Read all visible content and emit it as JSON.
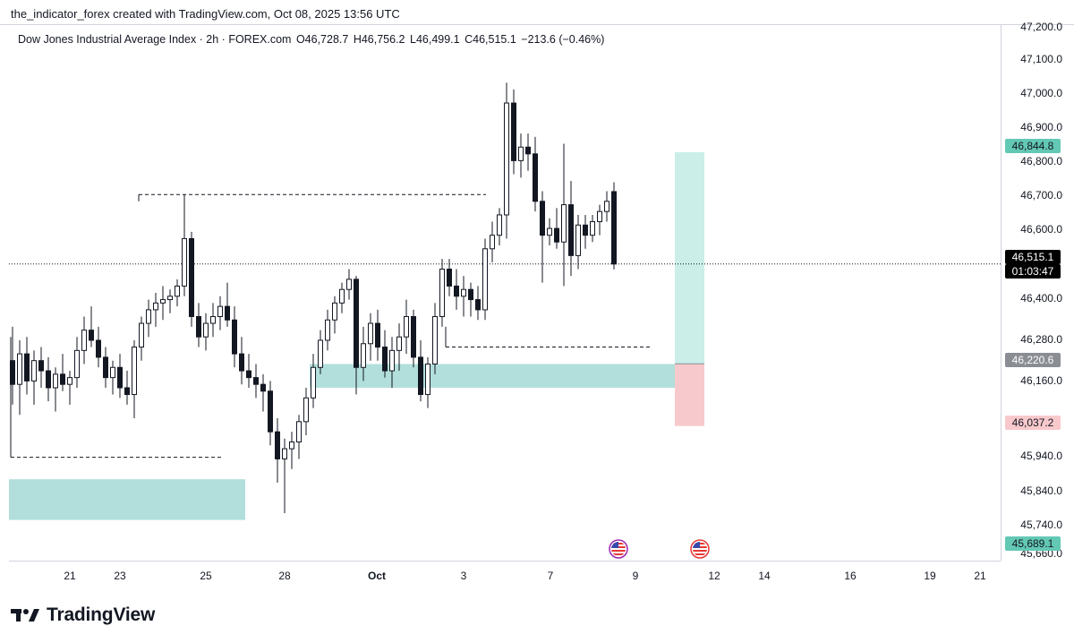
{
  "header": {
    "attribution": "the_indicator_forex created with TradingView.com, Oct 08, 2025 13:56 UTC"
  },
  "legend": {
    "symbol": "Dow Jones Industrial Average Index · 2h · FOREX.com",
    "open": "O46,728.7",
    "high": "H46,756.2",
    "low": "L46,499.1",
    "close": "C46,515.1",
    "change": "−213.6 (−0.46%)"
  },
  "price_axis": {
    "labels": [
      "47,200.0",
      "47,100.0",
      "47,000.0",
      "46,900.0",
      "46,800.0",
      "46,700.0",
      "46,600.0",
      "46,400.0",
      "46,280.0",
      "46,160.0",
      "45,940.0",
      "45,840.0",
      "45,740.0",
      "45,660.0"
    ],
    "badges": {
      "target": "46,844.8",
      "current_price": "46,515.1",
      "countdown": "01:03:47",
      "entry": "46,220.6",
      "stop": "46,037.2",
      "low": "45,689.1"
    }
  },
  "time_axis": {
    "labels": [
      "21",
      "23",
      "25",
      "28",
      "Oct",
      "3",
      "7",
      "9",
      "12",
      "14",
      "16",
      "19",
      "21"
    ]
  },
  "brand": {
    "name": "TradingView"
  },
  "colors": {
    "bull": "#26a69a",
    "bear": "#ef5350",
    "zone": "#b2dfdb",
    "target_zone": "#cbeee9",
    "stop_zone": "#f8c9cc",
    "text": "#131722",
    "grid_line": "#d1d4dc"
  },
  "icons": {
    "event_markers": [
      "us-flag-icon",
      "us-flag-icon"
    ],
    "logo": "tradingview-logo-icon"
  },
  "chart_data": {
    "type": "candlestick",
    "symbol": "Dow Jones Industrial Average Index",
    "interval": "2h",
    "ylim": [
      45640,
      47220
    ],
    "last_price": 46515.1,
    "candles_ohlc": [
      [
        46230,
        46330,
        46100,
        46160
      ],
      [
        46160,
        46290,
        46070,
        46250
      ],
      [
        46250,
        46300,
        46130,
        46170
      ],
      [
        46170,
        46260,
        46100,
        46230
      ],
      [
        46230,
        46270,
        46150,
        46200
      ],
      [
        46200,
        46240,
        46110,
        46150
      ],
      [
        46150,
        46210,
        46080,
        46190
      ],
      [
        46190,
        46250,
        46140,
        46160
      ],
      [
        46160,
        46200,
        46100,
        46180
      ],
      [
        46180,
        46300,
        46150,
        46260
      ],
      [
        46260,
        46360,
        46220,
        46320
      ],
      [
        46320,
        46390,
        46270,
        46290
      ],
      [
        46290,
        46330,
        46210,
        46240
      ],
      [
        46240,
        46270,
        46150,
        46180
      ],
      [
        46180,
        46230,
        46130,
        46210
      ],
      [
        46210,
        46250,
        46120,
        46150
      ],
      [
        46150,
        46200,
        46100,
        46130
      ],
      [
        46130,
        46290,
        46060,
        46270
      ],
      [
        46270,
        46360,
        46230,
        46340
      ],
      [
        46340,
        46410,
        46300,
        46380
      ],
      [
        46380,
        46430,
        46330,
        46400
      ],
      [
        46400,
        46450,
        46350,
        46410
      ],
      [
        46410,
        46440,
        46370,
        46420
      ],
      [
        46420,
        46470,
        46390,
        46450
      ],
      [
        46450,
        46720,
        46420,
        46590
      ],
      [
        46590,
        46610,
        46330,
        46360
      ],
      [
        46360,
        46400,
        46270,
        46300
      ],
      [
        46300,
        46370,
        46260,
        46340
      ],
      [
        46340,
        46400,
        46300,
        46360
      ],
      [
        46360,
        46420,
        46320,
        46390
      ],
      [
        46390,
        46460,
        46330,
        46350
      ],
      [
        46350,
        46390,
        46210,
        46250
      ],
      [
        46250,
        46300,
        46160,
        46200
      ],
      [
        46200,
        46250,
        46150,
        46180
      ],
      [
        46180,
        46220,
        46120,
        46160
      ],
      [
        46160,
        46190,
        46080,
        46140
      ],
      [
        46140,
        46170,
        45980,
        46020
      ],
      [
        46020,
        46060,
        45870,
        45940
      ],
      [
        45940,
        46000,
        45780,
        45970
      ],
      [
        45970,
        46020,
        45910,
        45990
      ],
      [
        45990,
        46070,
        45940,
        46050
      ],
      [
        46050,
        46150,
        46010,
        46120
      ],
      [
        46120,
        46250,
        46090,
        46210
      ],
      [
        46210,
        46320,
        46190,
        46290
      ],
      [
        46290,
        46380,
        46260,
        46350
      ],
      [
        46350,
        46420,
        46310,
        46400
      ],
      [
        46400,
        46460,
        46370,
        46440
      ],
      [
        46440,
        46500,
        46410,
        46470
      ],
      [
        46470,
        46480,
        46130,
        46210
      ],
      [
        46210,
        46330,
        46170,
        46280
      ],
      [
        46280,
        46370,
        46230,
        46340
      ],
      [
        46340,
        46380,
        46230,
        46270
      ],
      [
        46270,
        46320,
        46180,
        46200
      ],
      [
        46200,
        46300,
        46150,
        46260
      ],
      [
        46260,
        46340,
        46200,
        46300
      ],
      [
        46300,
        46410,
        46250,
        46360
      ],
      [
        46360,
        46380,
        46210,
        46240
      ],
      [
        46240,
        46290,
        46110,
        46130
      ],
      [
        46130,
        46240,
        46090,
        46220
      ],
      [
        46220,
        46400,
        46190,
        46360
      ],
      [
        46360,
        46530,
        46330,
        46500
      ],
      [
        46500,
        46530,
        46420,
        46450
      ],
      [
        46450,
        46500,
        46380,
        46420
      ],
      [
        46420,
        46480,
        46360,
        46440
      ],
      [
        46440,
        46460,
        46360,
        46410
      ],
      [
        46410,
        46450,
        46350,
        46380
      ],
      [
        46380,
        46590,
        46350,
        46560
      ],
      [
        46560,
        46640,
        46520,
        46600
      ],
      [
        46600,
        46680,
        46570,
        46660
      ],
      [
        46660,
        47050,
        46590,
        46990
      ],
      [
        46990,
        47030,
        46780,
        46820
      ],
      [
        46820,
        46900,
        46770,
        46860
      ],
      [
        46860,
        46900,
        46790,
        46840
      ],
      [
        46840,
        46890,
        46670,
        46700
      ],
      [
        46700,
        46730,
        46460,
        46600
      ],
      [
        46600,
        46650,
        46570,
        46620
      ],
      [
        46620,
        46680,
        46560,
        46580
      ],
      [
        46580,
        46870,
        46450,
        46690
      ],
      [
        46690,
        46760,
        46480,
        46540
      ],
      [
        46540,
        46660,
        46500,
        46630
      ],
      [
        46630,
        46660,
        46560,
        46600
      ],
      [
        46600,
        46660,
        46580,
        46640
      ],
      [
        46640,
        46690,
        46600,
        46670
      ],
      [
        46670,
        46730,
        46640,
        46700
      ],
      [
        46728.7,
        46756.2,
        46499.1,
        46515.1
      ]
    ],
    "zones": [
      {
        "name": "demand",
        "price_range": [
          45760,
          45880
        ]
      },
      {
        "name": "support",
        "price_range": [
          46150,
          46220
        ]
      }
    ],
    "levels": [
      {
        "name": "high-line",
        "price": 46720
      },
      {
        "name": "low-line",
        "price": 45945
      },
      {
        "name": "mid-line",
        "price": 46270
      }
    ],
    "position": {
      "entry": 46220.6,
      "target": 46844.8,
      "stop": 46037.2
    }
  }
}
